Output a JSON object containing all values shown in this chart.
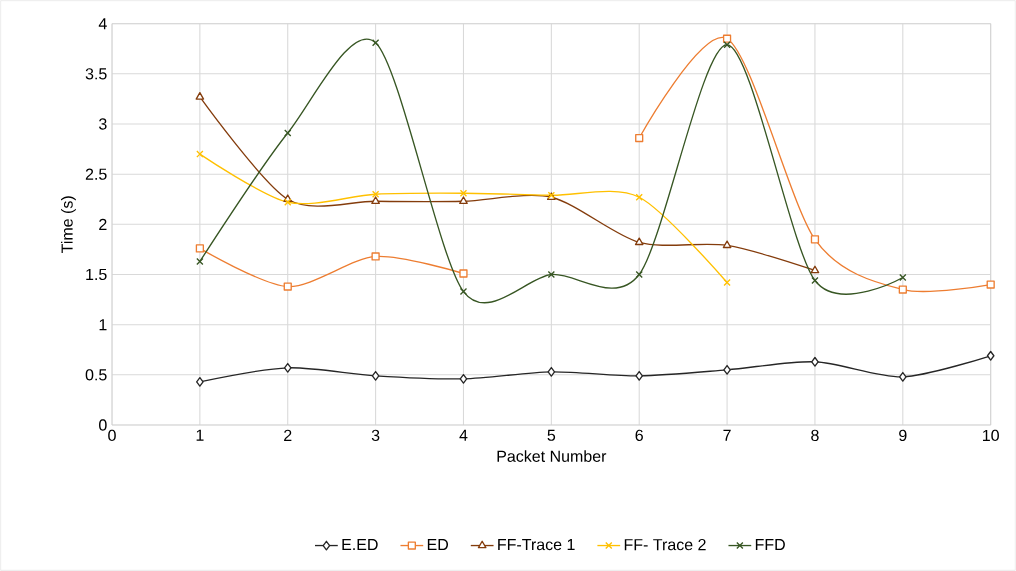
{
  "chart_data": {
    "type": "line",
    "xlabel": "Packet Number",
    "ylabel": "Time (s)",
    "x": [
      1,
      2,
      3,
      4,
      5,
      6,
      7,
      8,
      9,
      10
    ],
    "xlim": [
      0,
      10
    ],
    "xticks": [
      0,
      1,
      2,
      3,
      4,
      5,
      6,
      7,
      8,
      9,
      10
    ],
    "ylim": [
      0,
      4
    ],
    "yticks": [
      0,
      0.5,
      1,
      1.5,
      2,
      2.5,
      3,
      3.5,
      4
    ],
    "grid": true,
    "legend": "bottom",
    "line_style": "solid",
    "series": [
      {
        "name": "E.ED",
        "color": "#262626",
        "marker": "diamond",
        "values": [
          0.43,
          0.57,
          0.49,
          0.46,
          0.53,
          0.49,
          0.55,
          0.63,
          0.48,
          0.69
        ]
      },
      {
        "name": "ED",
        "color": "#ed7d31",
        "marker": "square",
        "values": [
          1.76,
          1.38,
          1.68,
          1.51,
          null,
          2.86,
          3.85,
          1.85,
          1.35,
          1.4
        ]
      },
      {
        "name": "FF-Trace 1",
        "color": "#843c0c",
        "marker": "triangle",
        "values": [
          3.27,
          2.25,
          2.23,
          2.23,
          2.27,
          1.82,
          1.79,
          1.54,
          null,
          null
        ]
      },
      {
        "name": "FF- Trace 2",
        "color": "#ffc000",
        "marker": "cross",
        "values": [
          2.7,
          2.22,
          2.3,
          2.31,
          2.29,
          2.27,
          1.42,
          null,
          null,
          null
        ]
      },
      {
        "name": "FFD",
        "color": "#375623",
        "marker": "cross",
        "values": [
          1.63,
          2.91,
          3.81,
          1.33,
          1.5,
          1.5,
          3.79,
          1.44,
          1.47,
          null
        ]
      }
    ]
  }
}
